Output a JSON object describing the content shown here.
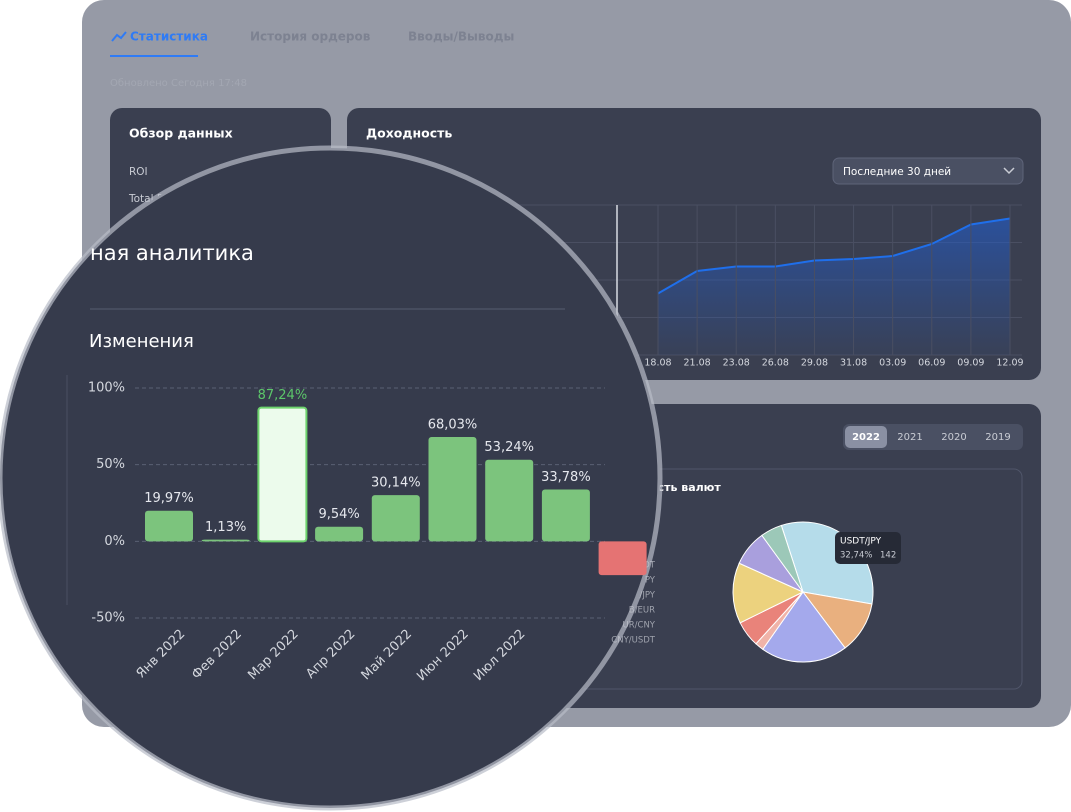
{
  "tabs": [
    "Статистика",
    "История ордеров",
    "Вводы/Выводы"
  ],
  "updated": "Обновлено Сегодня  17:48",
  "overview": {
    "title": "Обзор данных",
    "rows": [
      "ROI",
      "Total P"
    ]
  },
  "profit": {
    "title": "Доходность",
    "period": "Последние 30 дней",
    "chart": {
      "type": "line",
      "x": [
        "18.08",
        "21.08",
        "23.08",
        "26.08",
        "29.08",
        "31.08",
        "03.09",
        "06.09",
        "09.09",
        "12.09"
      ],
      "values": [
        41,
        56,
        59,
        59,
        63,
        64,
        66,
        74,
        87,
        91
      ],
      "color": "#1f6feb",
      "ylim": [
        0,
        100
      ]
    }
  },
  "currencies": {
    "years": [
      "2022",
      "2021",
      "2020",
      "2019"
    ],
    "title": "ость валют",
    "legend": [
      "DT",
      "PY",
      "/JPY",
      "B/EUR",
      "UR/CNY",
      "CNY/USDT"
    ],
    "pie": {
      "type": "pie",
      "values": [
        32.74,
        12,
        20,
        2,
        6,
        14,
        8.26,
        5
      ],
      "colors": [
        "#b5dcea",
        "#e9b07f",
        "#a4a9ec",
        "#f0b3a8",
        "#e9837a",
        "#ecd27e",
        "#a99fdd",
        "#9cc8b8"
      ]
    },
    "tooltip": {
      "name": "USDT/JPY",
      "percent": "32,74%",
      "count": "142"
    }
  },
  "magnifier": {
    "title": "ная аналитика",
    "chart": {
      "type": "bar",
      "title": "Изменения",
      "categories": [
        "Янв 2022",
        "Фев 2022",
        "Мар 2022",
        "Апр 2022",
        "Май 2022",
        "Июн 2022",
        "Июл 2022",
        null,
        null
      ],
      "values": [
        19.97,
        1.13,
        87.24,
        9.54,
        30.14,
        68.03,
        53.24,
        33.78,
        -22
      ],
      "value_labels": [
        "19,97%",
        "1,13%",
        "87,24%",
        "9,54%",
        "30,14%",
        "68,03%",
        "53,24%",
        "33,78%",
        null
      ],
      "ylim": [
        -50,
        100
      ],
      "yticks": [
        {
          "value": 100,
          "label": "100%"
        },
        {
          "value": 50,
          "label": "50%"
        },
        {
          "value": 0,
          "label": "0%"
        },
        {
          "value": -50,
          "label": "-50%"
        }
      ],
      "grid": true
    }
  }
}
